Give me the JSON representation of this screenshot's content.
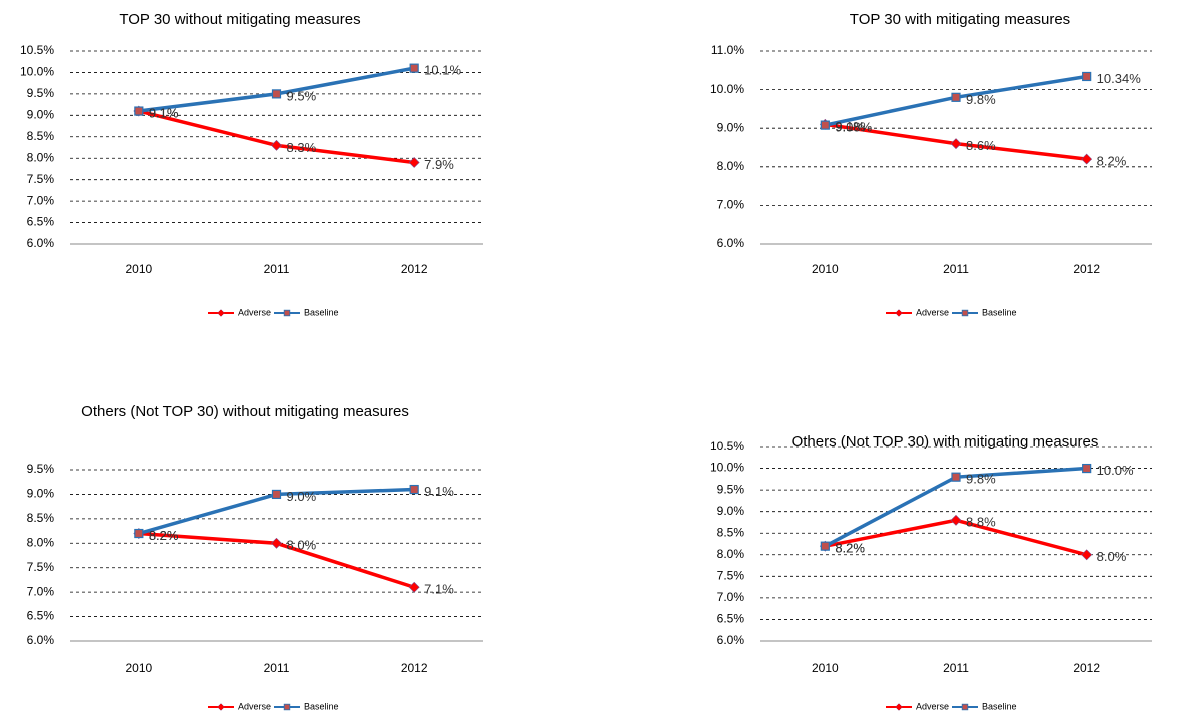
{
  "chart_data": [
    {
      "type": "line",
      "title": "TOP 30 without mitigating measures",
      "categories": [
        "2010",
        "2011",
        "2012"
      ],
      "series": [
        {
          "name": "Adverse",
          "color": "#ff0000",
          "marker": "diamond",
          "values": [
            9.1,
            8.3,
            7.9
          ],
          "value_labels": [
            "9.1%",
            "8.3%",
            "7.9%"
          ]
        },
        {
          "name": "Baseline",
          "color": "#2a72b5",
          "marker": "square",
          "values": [
            9.1,
            9.5,
            10.1
          ],
          "value_labels": [
            "9.1%",
            "9.5%",
            "10.1%"
          ]
        }
      ],
      "ylim": [
        6,
        10.5
      ],
      "yticks": [
        {
          "value": 6,
          "label": "6.0%"
        },
        {
          "value": 6.5,
          "label": "6.5%"
        },
        {
          "value": 7,
          "label": "7.0%"
        },
        {
          "value": 7.5,
          "label": "7.5%"
        },
        {
          "value": 8,
          "label": "8.0%"
        },
        {
          "value": 8.5,
          "label": "8.5%"
        },
        {
          "value": 9,
          "label": "9.0%"
        },
        {
          "value": 9.5,
          "label": "9.5%"
        },
        {
          "value": 10,
          "label": "10.0%"
        },
        {
          "value": 10.5,
          "label": "10.5%"
        }
      ],
      "grid": true,
      "legend": "bottom"
    },
    {
      "type": "line",
      "title": "TOP 30 with mitigating measures",
      "categories": [
        "2010",
        "2011",
        "2012"
      ],
      "series": [
        {
          "name": "Adverse",
          "color": "#ff0000",
          "marker": "diamond",
          "values": [
            9.1,
            8.6,
            8.2
          ],
          "value_labels": [
            "9.1%",
            "8.6%",
            "8.2%"
          ]
        },
        {
          "name": "Baseline",
          "color": "#2a72b5",
          "marker": "square",
          "values": [
            9.08,
            9.8,
            10.34
          ],
          "value_labels": [
            "9.08%",
            "9.8%",
            "10.34%"
          ]
        }
      ],
      "ylim": [
        6,
        11
      ],
      "yticks": [
        {
          "value": 6,
          "label": "6.0%"
        },
        {
          "value": 7,
          "label": "7.0%"
        },
        {
          "value": 8,
          "label": "8.0%"
        },
        {
          "value": 9,
          "label": "9.0%"
        },
        {
          "value": 10,
          "label": "10.0%"
        },
        {
          "value": 11,
          "label": "11.0%"
        }
      ],
      "grid": true,
      "legend": "bottom"
    },
    {
      "type": "line",
      "title": "Others (Not TOP 30)  without mitigating measures",
      "categories": [
        "2010",
        "2011",
        "2012"
      ],
      "series": [
        {
          "name": "Adverse",
          "color": "#ff0000",
          "marker": "diamond",
          "values": [
            8.2,
            8.0,
            7.1
          ],
          "value_labels": [
            "8.2%",
            "8.0%",
            "7.1%"
          ]
        },
        {
          "name": "Baseline",
          "color": "#2a72b5",
          "marker": "square",
          "values": [
            8.2,
            9.0,
            9.1
          ],
          "value_labels": [
            "8.2%",
            "9.0%",
            "9.1%"
          ]
        }
      ],
      "ylim": [
        6,
        9.5
      ],
      "yticks": [
        {
          "value": 6,
          "label": "6.0%"
        },
        {
          "value": 6.5,
          "label": "6.5%"
        },
        {
          "value": 7,
          "label": "7.0%"
        },
        {
          "value": 7.5,
          "label": "7.5%"
        },
        {
          "value": 8,
          "label": "8.0%"
        },
        {
          "value": 8.5,
          "label": "8.5%"
        },
        {
          "value": 9,
          "label": "9.0%"
        },
        {
          "value": 9.5,
          "label": "9.5%"
        }
      ],
      "grid": true,
      "legend": "bottom"
    },
    {
      "type": "line",
      "title": "Others (Not TOP 30)  with mitigating measures",
      "categories": [
        "2010",
        "2011",
        "2012"
      ],
      "series": [
        {
          "name": "Adverse",
          "color": "#ff0000",
          "marker": "diamond",
          "values": [
            8.2,
            8.8,
            8.0
          ],
          "value_labels": [
            "8.2%",
            "8.8%",
            "8.0%"
          ]
        },
        {
          "name": "Baseline",
          "color": "#2a72b5",
          "marker": "square",
          "values": [
            8.2,
            9.8,
            10.0
          ],
          "value_labels": [
            "8.2%",
            "9.8%",
            "10.0%"
          ]
        }
      ],
      "ylim": [
        6,
        10.5
      ],
      "yticks": [
        {
          "value": 6,
          "label": "6.0%"
        },
        {
          "value": 6.5,
          "label": "6.5%"
        },
        {
          "value": 7,
          "label": "7.0%"
        },
        {
          "value": 7.5,
          "label": "7.5%"
        },
        {
          "value": 8,
          "label": "8.0%"
        },
        {
          "value": 8.5,
          "label": "8.5%"
        },
        {
          "value": 9,
          "label": "9.0%"
        },
        {
          "value": 9.5,
          "label": "9.5%"
        },
        {
          "value": 10,
          "label": "10.0%"
        },
        {
          "value": 10.5,
          "label": "10.5%"
        }
      ],
      "grid": true,
      "legend": "bottom"
    }
  ]
}
